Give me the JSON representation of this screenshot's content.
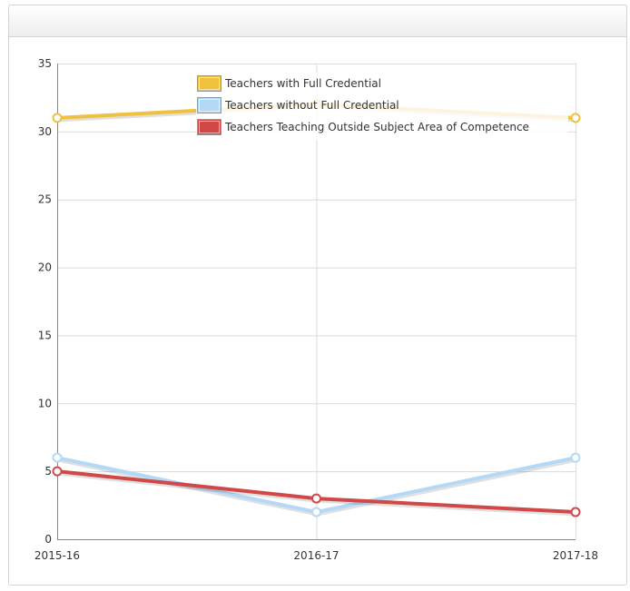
{
  "panel": {
    "title": ""
  },
  "chart_data": {
    "type": "line",
    "title": "",
    "xlabel": "",
    "ylabel": "",
    "categories": [
      "2015-16",
      "2016-17",
      "2017-18"
    ],
    "ylim": [
      0,
      35
    ],
    "yticks": [
      0,
      5,
      10,
      15,
      20,
      25,
      30,
      35
    ],
    "grid": true,
    "legend_position": "top-center",
    "series": [
      {
        "name": "Teachers with Full Credential",
        "values": [
          31,
          32,
          31
        ],
        "color": "#eec13f"
      },
      {
        "name": "Teachers without Full Credential",
        "values": [
          6,
          2,
          6
        ],
        "color": "#b3d9f7"
      },
      {
        "name": "Teachers Teaching Outside Subject Area of Competence",
        "values": [
          5,
          3,
          2
        ],
        "color": "#d04848"
      }
    ]
  }
}
